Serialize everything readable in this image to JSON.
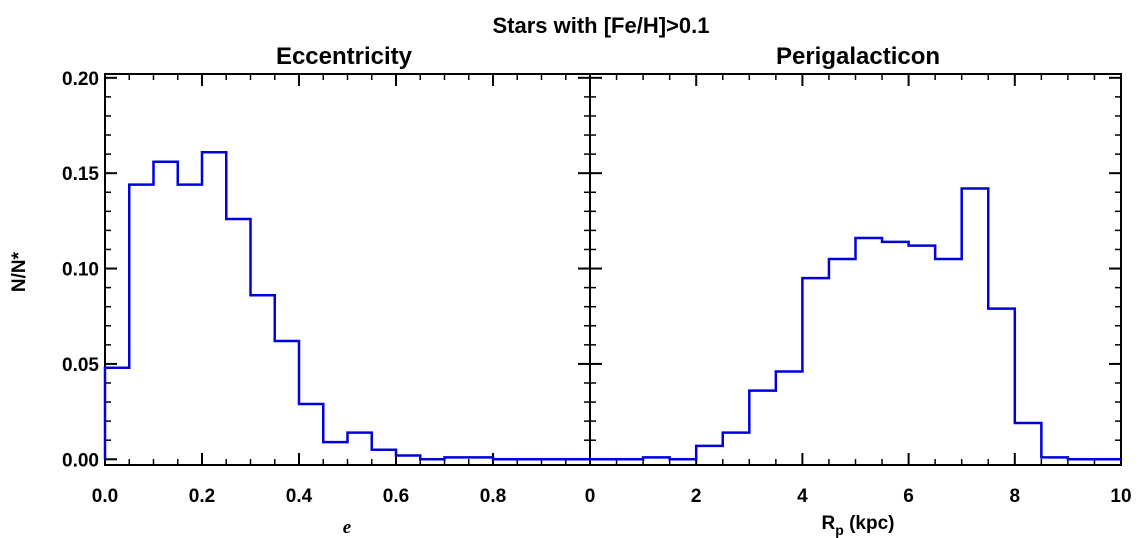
{
  "figure": {
    "title": "Stars with [Fe/H]>0.1",
    "ylabel": "N/N*"
  },
  "chart_data": [
    {
      "type": "histogram",
      "title": "Eccentricity",
      "xlabel": "e",
      "ylabel": "N/N*",
      "xlim": [
        0.0,
        1.0
      ],
      "ylim": [
        -0.003,
        0.202
      ],
      "x_ticks": [
        0.0,
        0.2,
        0.4,
        0.6,
        0.8
      ],
      "x_tick_labels": [
        "0.0",
        "0.2",
        "0.4",
        "0.6",
        "0.8"
      ],
      "y_ticks": [
        0.0,
        0.05,
        0.1,
        0.15,
        0.2
      ],
      "y_tick_labels": [
        "0.00",
        "0.05",
        "0.10",
        "0.15",
        "0.20"
      ],
      "bin_width": 0.05,
      "bin_edges": [
        0.0,
        0.05,
        0.1,
        0.15,
        0.2,
        0.25,
        0.3,
        0.35,
        0.4,
        0.45,
        0.5,
        0.55,
        0.6,
        0.65,
        0.7,
        0.75,
        0.8,
        0.85,
        0.9,
        0.95,
        1.0
      ],
      "values": [
        0.048,
        0.144,
        0.156,
        0.144,
        0.161,
        0.126,
        0.086,
        0.062,
        0.029,
        0.009,
        0.014,
        0.005,
        0.002,
        0.0,
        0.001,
        0.001,
        0.0,
        0.0,
        0.0,
        0.0
      ],
      "color": "#0000dd"
    },
    {
      "type": "histogram",
      "title": "Perigalacticon",
      "xlabel": "R",
      "xlabel_subscript": "p",
      "xlabel_suffix": " (kpc)",
      "xlim": [
        0,
        10
      ],
      "ylim": [
        -0.003,
        0.202
      ],
      "x_ticks": [
        0,
        2,
        4,
        6,
        8,
        10
      ],
      "x_tick_labels": [
        "0",
        "2",
        "4",
        "6",
        "8",
        "10"
      ],
      "y_ticks": [
        0.0,
        0.05,
        0.1,
        0.15,
        0.2
      ],
      "bin_width": 0.5,
      "bin_edges": [
        0.0,
        0.5,
        1.0,
        1.5,
        2.0,
        2.5,
        3.0,
        3.5,
        4.0,
        4.5,
        5.0,
        5.5,
        6.0,
        6.5,
        7.0,
        7.5,
        8.0,
        8.5,
        9.0,
        9.5,
        10.0
      ],
      "values": [
        0.0,
        0.0,
        0.001,
        0.0,
        0.007,
        0.014,
        0.036,
        0.046,
        0.095,
        0.105,
        0.116,
        0.114,
        0.112,
        0.105,
        0.142,
        0.079,
        0.019,
        0.001,
        0.0,
        0.0
      ],
      "color": "#0000dd"
    }
  ]
}
